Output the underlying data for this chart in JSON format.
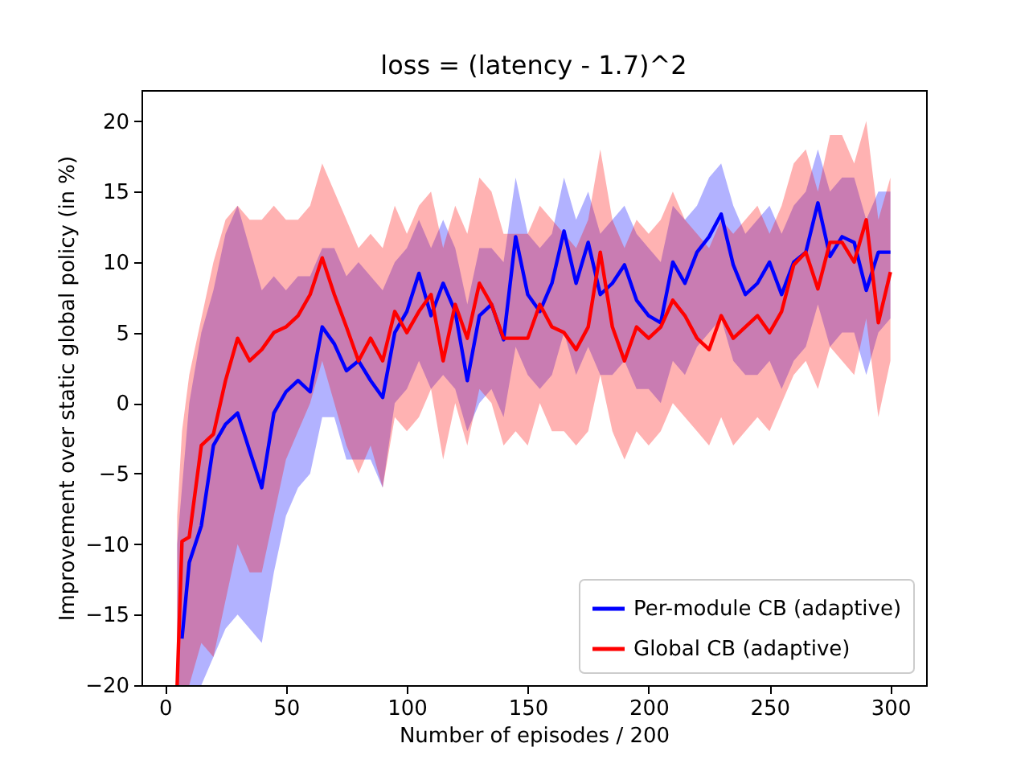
{
  "chart_data": {
    "type": "line",
    "title": "loss = (latency - 1.7)^2",
    "xlabel": "Number of episodes / 200",
    "ylabel": "Improvement over static global policy (in %)",
    "x": [
      5,
      7,
      10,
      15,
      20,
      25,
      30,
      35,
      40,
      45,
      50,
      55,
      60,
      65,
      70,
      75,
      80,
      85,
      90,
      95,
      100,
      105,
      110,
      115,
      120,
      125,
      130,
      135,
      140,
      145,
      150,
      155,
      160,
      165,
      170,
      175,
      180,
      185,
      190,
      195,
      200,
      205,
      210,
      215,
      220,
      225,
      230,
      235,
      240,
      245,
      250,
      255,
      260,
      265,
      270,
      275,
      280,
      285,
      290,
      295,
      300
    ],
    "series": [
      {
        "name": "Per-module CB (adaptive)",
        "color": "#0000ff",
        "values": [
          null,
          -16.7,
          -11.3,
          -8.7,
          -3,
          -1.5,
          -0.7,
          -3.4,
          -6,
          -0.7,
          0.8,
          1.6,
          0.8,
          5.4,
          4.2,
          2.3,
          3,
          1.6,
          0.4,
          5,
          6.5,
          9.2,
          6.2,
          8.5,
          6.5,
          1.6,
          6.2,
          7,
          4.5,
          11.8,
          7.7,
          6.5,
          8.5,
          12.2,
          8.5,
          11.4,
          7.7,
          8.5,
          9.8,
          7.3,
          6.2,
          5.7,
          10,
          8.5,
          10.7,
          11.8,
          13.4,
          9.8,
          7.7,
          8.5,
          10,
          7.7,
          10,
          10.7,
          14.2,
          10.4,
          11.8,
          11.4,
          8,
          10.7,
          10.7
        ],
        "lower": [
          -20,
          -20,
          -20,
          -20,
          -18,
          -16,
          -15,
          -16,
          -17,
          -12,
          -8,
          -6,
          -5,
          -1,
          -1,
          -4,
          -4,
          -4,
          -6,
          0,
          1,
          3,
          1,
          2,
          1,
          -2,
          0,
          1,
          -1,
          4,
          2,
          1,
          2,
          5,
          2,
          4,
          2,
          2,
          3,
          1,
          1,
          0,
          3,
          2,
          4,
          5,
          6,
          3,
          2,
          2,
          3,
          1,
          3,
          4,
          7,
          4,
          5,
          5,
          2,
          5,
          6
        ],
        "upper": [
          -10,
          -6,
          0,
          5,
          8,
          12,
          14,
          11,
          8,
          9,
          8,
          9,
          9,
          11,
          11,
          9,
          10,
          9,
          8,
          10,
          11,
          13,
          11,
          13,
          11,
          7,
          11,
          11,
          10,
          16,
          12,
          11,
          12,
          16,
          13,
          15,
          12,
          13,
          14,
          12,
          11,
          10,
          14,
          13,
          14,
          16,
          17,
          14,
          12,
          13,
          14,
          12,
          14,
          15,
          18,
          15,
          16,
          16,
          13,
          15,
          15
        ]
      },
      {
        "name": "Global CB (adaptive)",
        "color": "#ff0000",
        "values": [
          -20,
          -9.8,
          -9.5,
          -3,
          -2.2,
          1.6,
          4.6,
          3,
          3.8,
          5,
          5.4,
          6.2,
          7.7,
          10.3,
          7.7,
          5.4,
          3,
          4.6,
          3,
          6.5,
          5,
          6.5,
          7.7,
          3,
          7,
          4.6,
          8.5,
          7,
          4.6,
          4.6,
          4.6,
          7,
          5.4,
          5,
          3.8,
          5.4,
          10.7,
          5.4,
          3,
          5.4,
          4.6,
          5.4,
          7.3,
          6.2,
          4.6,
          3.8,
          6.2,
          4.6,
          5.4,
          6.2,
          5,
          6.5,
          9.8,
          10.7,
          8.1,
          11.4,
          11.4,
          10,
          13,
          5.7,
          9.3
        ],
        "lower": [
          -20,
          -20,
          -20,
          -17,
          -18,
          -14,
          -10,
          -12,
          -12,
          -8,
          -4,
          -2,
          0,
          3,
          0,
          -3,
          -5,
          -3,
          -6,
          -1,
          -2,
          -1,
          1,
          -4,
          0,
          -3,
          1,
          0,
          -3,
          -2,
          -3,
          0,
          -2,
          -2,
          -3,
          -2,
          2,
          -2,
          -4,
          -2,
          -3,
          -2,
          0,
          -1,
          -2,
          -3,
          -1,
          -3,
          -2,
          -1,
          -2,
          0,
          2,
          3,
          1,
          4,
          3,
          2,
          6,
          -1,
          3
        ],
        "upper": [
          -8,
          -2,
          2,
          6,
          10,
          13,
          14,
          13,
          13,
          14,
          13,
          13,
          14,
          17,
          15,
          13,
          11,
          12,
          11,
          14,
          12,
          14,
          15,
          11,
          14,
          12,
          16,
          15,
          12,
          12,
          12,
          14,
          13,
          12,
          11,
          13,
          18,
          13,
          11,
          13,
          12,
          13,
          15,
          13,
          12,
          11,
          13,
          12,
          13,
          14,
          12,
          14,
          17,
          18,
          15,
          19,
          19,
          17,
          20,
          13,
          16
        ]
      }
    ],
    "xlim": [
      -9.75,
      314.75
    ],
    "ylim": [
      -20,
      22.2
    ],
    "xticks": [
      0,
      50,
      100,
      150,
      200,
      250,
      300
    ],
    "yticks": [
      -20,
      -15,
      -10,
      -5,
      0,
      5,
      10,
      15,
      20
    ],
    "grid": false,
    "legend": "bottom right"
  }
}
